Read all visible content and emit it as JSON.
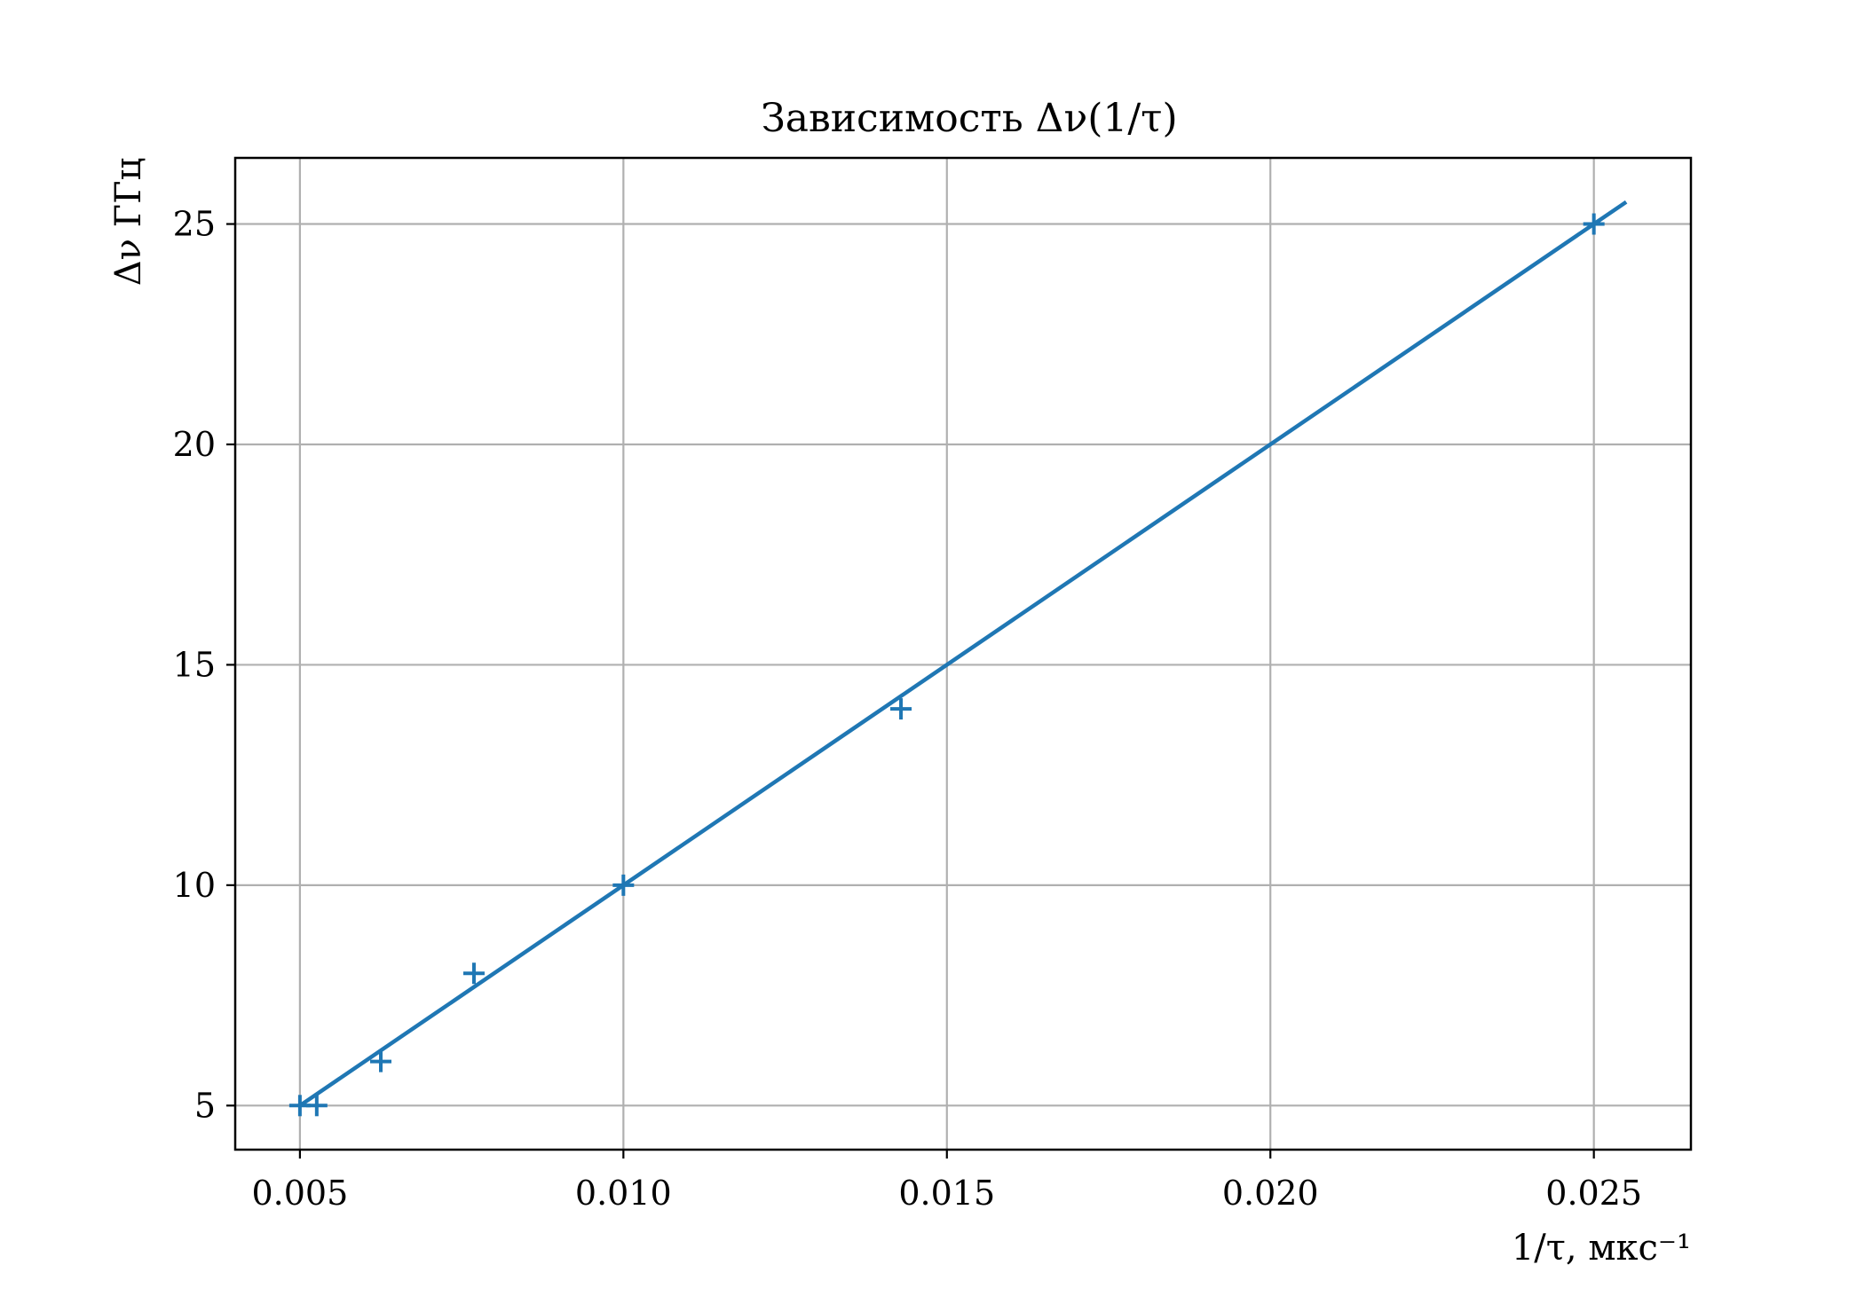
{
  "chart_data": {
    "type": "scatter",
    "title": "Зависимость Δν(1/τ)",
    "xlabel": "1/τ, мкс⁻¹",
    "ylabel": "Δν ГГц",
    "xlim": [
      0.004,
      0.0265
    ],
    "ylim": [
      4.0,
      26.5
    ],
    "x_ticks": [
      "0.005",
      "0.010",
      "0.015",
      "0.020",
      "0.025"
    ],
    "y_ticks": [
      "5",
      "10",
      "15",
      "20",
      "25"
    ],
    "grid": true,
    "series": [
      {
        "kind": "scatter",
        "marker": "+",
        "color": "#1f77b4",
        "x": [
          0.005,
          0.00526,
          0.00625,
          0.00769,
          0.01,
          0.01429,
          0.025
        ],
        "y": [
          5,
          5,
          6,
          8,
          10,
          14,
          25
        ]
      },
      {
        "kind": "line",
        "color": "#1f77b4",
        "x": [
          0.005,
          0.0255
        ],
        "y": [
          5.0,
          25.5
        ]
      }
    ]
  }
}
